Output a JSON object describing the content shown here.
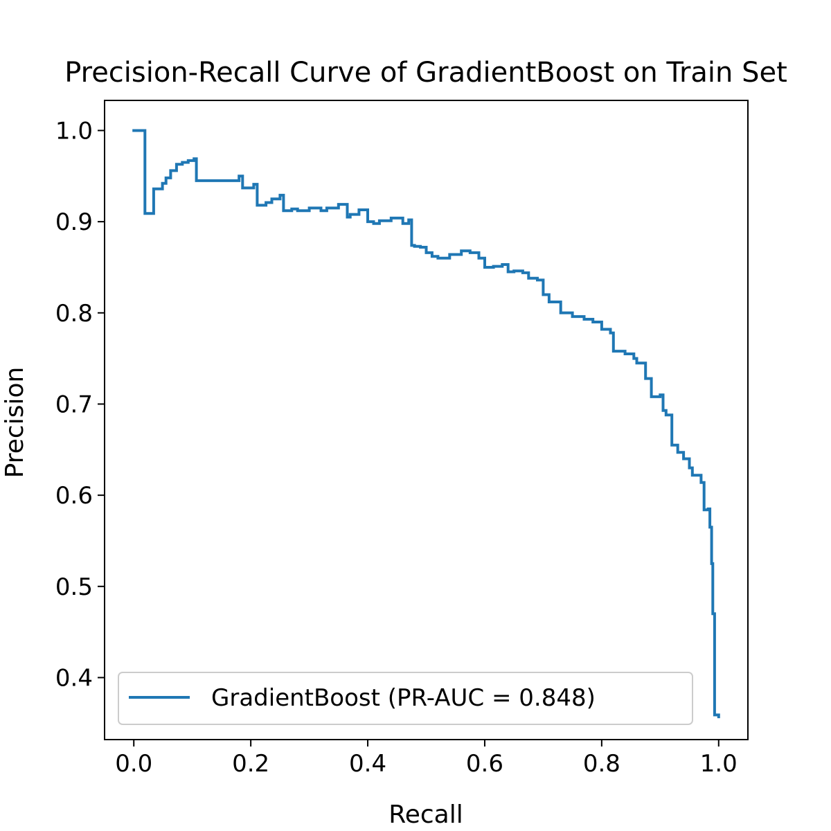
{
  "chart_data": {
    "type": "line",
    "title": "Precision-Recall Curve of GradientBoost on Train Set",
    "xlabel": "Recall",
    "ylabel": "Precision",
    "xlim": [
      -0.05,
      1.05
    ],
    "ylim": [
      0.332,
      1.033
    ],
    "grid": false,
    "legend_position": "lower-left",
    "x_ticks": [
      {
        "value": 0.0,
        "label": "0.0"
      },
      {
        "value": 0.2,
        "label": "0.2"
      },
      {
        "value": 0.4,
        "label": "0.4"
      },
      {
        "value": 0.6,
        "label": "0.6"
      },
      {
        "value": 0.8,
        "label": "0.8"
      },
      {
        "value": 1.0,
        "label": "1.0"
      }
    ],
    "y_ticks": [
      {
        "value": 0.4,
        "label": "0.4"
      },
      {
        "value": 0.5,
        "label": "0.5"
      },
      {
        "value": 0.6,
        "label": "0.6"
      },
      {
        "value": 0.7,
        "label": "0.7"
      },
      {
        "value": 0.8,
        "label": "0.8"
      },
      {
        "value": 0.9,
        "label": "0.9"
      },
      {
        "value": 1.0,
        "label": "1.0"
      }
    ],
    "series": [
      {
        "name": "GradientBoost (PR-AUC = 0.848)",
        "color": "#1f77b4",
        "step": "post",
        "x": [
          0.0,
          0.019,
          0.034,
          0.049,
          0.055,
          0.063,
          0.073,
          0.083,
          0.093,
          0.103,
          0.107,
          0.18,
          0.186,
          0.205,
          0.211,
          0.226,
          0.236,
          0.25,
          0.256,
          0.27,
          0.28,
          0.3,
          0.32,
          0.33,
          0.35,
          0.365,
          0.37,
          0.385,
          0.4,
          0.41,
          0.42,
          0.44,
          0.46,
          0.47,
          0.475,
          0.48,
          0.49,
          0.5,
          0.51,
          0.52,
          0.54,
          0.56,
          0.575,
          0.59,
          0.6,
          0.615,
          0.63,
          0.64,
          0.65,
          0.665,
          0.675,
          0.69,
          0.7,
          0.71,
          0.73,
          0.75,
          0.77,
          0.785,
          0.8,
          0.815,
          0.82,
          0.84,
          0.855,
          0.86,
          0.875,
          0.885,
          0.9,
          0.905,
          0.91,
          0.92,
          0.93,
          0.94,
          0.95,
          0.955,
          0.97,
          0.975,
          0.982,
          0.985,
          0.988,
          0.99,
          0.993,
          1.0
        ],
        "y": [
          1.0,
          0.909,
          0.936,
          0.942,
          0.948,
          0.956,
          0.963,
          0.965,
          0.967,
          0.969,
          0.945,
          0.95,
          0.937,
          0.941,
          0.918,
          0.921,
          0.925,
          0.929,
          0.912,
          0.914,
          0.912,
          0.915,
          0.912,
          0.915,
          0.919,
          0.905,
          0.908,
          0.913,
          0.9,
          0.898,
          0.901,
          0.904,
          0.898,
          0.902,
          0.874,
          0.873,
          0.872,
          0.866,
          0.862,
          0.86,
          0.864,
          0.868,
          0.866,
          0.86,
          0.85,
          0.851,
          0.853,
          0.845,
          0.846,
          0.844,
          0.838,
          0.836,
          0.82,
          0.812,
          0.8,
          0.796,
          0.793,
          0.79,
          0.782,
          0.778,
          0.758,
          0.755,
          0.75,
          0.745,
          0.728,
          0.708,
          0.71,
          0.693,
          0.688,
          0.655,
          0.647,
          0.64,
          0.63,
          0.622,
          0.614,
          0.584,
          0.585,
          0.565,
          0.525,
          0.47,
          0.359,
          0.357
        ]
      }
    ]
  }
}
